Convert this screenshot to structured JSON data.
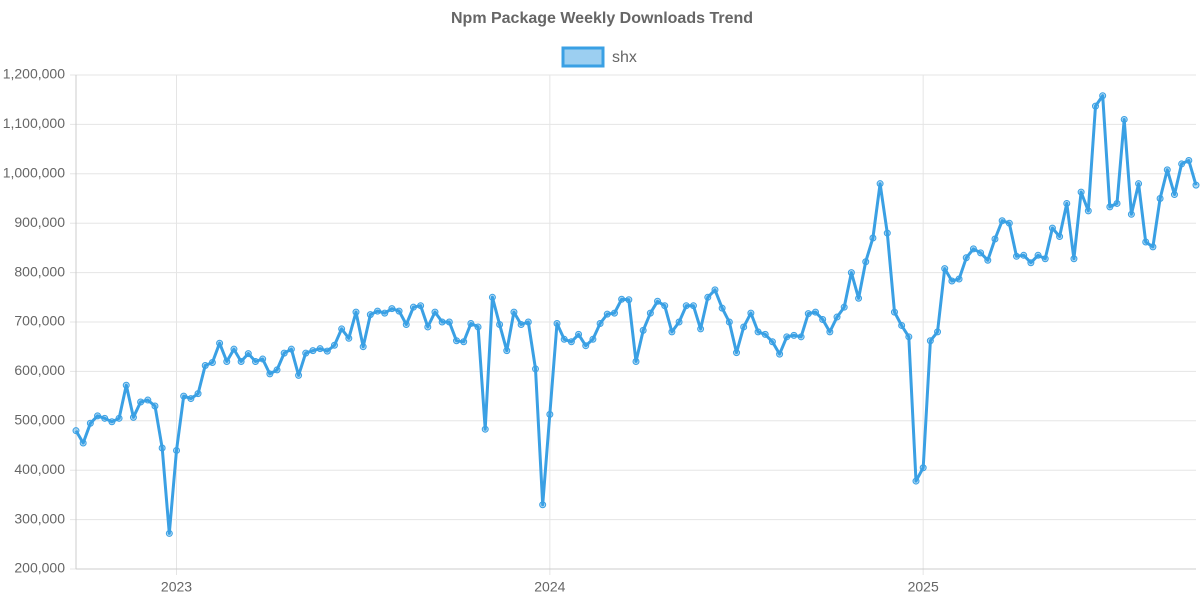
{
  "chart_data": {
    "type": "line",
    "title": "Npm Package Weekly Downloads Trend",
    "categories": [
      null,
      null,
      null,
      null,
      null,
      null,
      null,
      null,
      null,
      null,
      null,
      null,
      null,
      null,
      "2023",
      null,
      null,
      null,
      null,
      null,
      null,
      null,
      null,
      null,
      null,
      null,
      null,
      null,
      null,
      null,
      null,
      null,
      null,
      null,
      null,
      null,
      null,
      null,
      null,
      null,
      null,
      null,
      null,
      null,
      null,
      null,
      null,
      null,
      null,
      null,
      null,
      null,
      null,
      null,
      null,
      null,
      null,
      null,
      null,
      null,
      null,
      null,
      null,
      null,
      null,
      null,
      "2024",
      null,
      null,
      null,
      null,
      null,
      null,
      null,
      null,
      null,
      null,
      null,
      null,
      null,
      null,
      null,
      null,
      null,
      null,
      null,
      null,
      null,
      null,
      null,
      null,
      null,
      null,
      null,
      null,
      null,
      null,
      null,
      null,
      null,
      null,
      null,
      null,
      null,
      null,
      null,
      null,
      null,
      null,
      null,
      null,
      null,
      null,
      null,
      null,
      null,
      null,
      null,
      "2025",
      null,
      null,
      null,
      null,
      null,
      null,
      null,
      null,
      null,
      null,
      null,
      null,
      null,
      null,
      null,
      null,
      null,
      null,
      null,
      null,
      null,
      null,
      null,
      null,
      null,
      null,
      null,
      null,
      null,
      null,
      null,
      null,
      null,
      null,
      null,
      null,
      null,
      null
    ],
    "series": [
      {
        "name": "shx",
        "color": "#3aa0e4",
        "values": [
          480000,
          455000,
          495000,
          510000,
          505000,
          498000,
          505000,
          572000,
          507000,
          538000,
          542000,
          530000,
          445000,
          272000,
          440000,
          550000,
          545000,
          555000,
          612000,
          618000,
          657000,
          620000,
          645000,
          620000,
          636000,
          620000,
          625000,
          595000,
          603000,
          637000,
          645000,
          592000,
          637000,
          642000,
          646000,
          641000,
          653000,
          686000,
          667000,
          720000,
          650000,
          715000,
          722000,
          718000,
          727000,
          722000,
          695000,
          730000,
          733000,
          690000,
          720000,
          700000,
          700000,
          662000,
          660000,
          697000,
          690000,
          483000,
          750000,
          695000,
          642000,
          720000,
          695000,
          700000,
          605000,
          330000,
          513000,
          697000,
          665000,
          660000,
          675000,
          652000,
          665000,
          697000,
          716000,
          718000,
          746000,
          745000,
          620000,
          683000,
          718000,
          742000,
          733000,
          680000,
          700000,
          733000,
          733000,
          686000,
          750000,
          765000,
          728000,
          700000,
          638000,
          690000,
          718000,
          680000,
          675000,
          660000,
          635000,
          670000,
          673000,
          670000,
          717000,
          720000,
          705000,
          680000,
          710000,
          730000,
          800000,
          748000,
          822000,
          870000,
          980000,
          880000,
          720000,
          693000,
          670000,
          378000,
          405000,
          662000,
          680000,
          808000,
          783000,
          787000,
          830000,
          848000,
          840000,
          825000,
          868000,
          905000,
          900000,
          833000,
          835000,
          820000,
          835000,
          828000,
          890000,
          873000,
          940000,
          828000,
          963000,
          925000,
          1137000,
          1158000,
          933000,
          940000,
          1110000,
          918000,
          980000,
          862000,
          852000,
          950000,
          1008000,
          958000,
          1020000,
          1027000,
          977000
        ]
      }
    ],
    "ylim": [
      200000,
      1200000
    ],
    "yticks": [
      {
        "value": 200000,
        "label": "200,000"
      },
      {
        "value": 300000,
        "label": "300,000"
      },
      {
        "value": 400000,
        "label": "400,000"
      },
      {
        "value": 500000,
        "label": "500,000"
      },
      {
        "value": 600000,
        "label": "600,000"
      },
      {
        "value": 700000,
        "label": "700,000"
      },
      {
        "value": 800000,
        "label": "800,000"
      },
      {
        "value": 900000,
        "label": "900,000"
      },
      {
        "value": 1000000,
        "label": "1,000,000"
      },
      {
        "value": 1100000,
        "label": "1,100,000"
      },
      {
        "value": 1200000,
        "label": "1,200,000"
      }
    ],
    "grid": true
  }
}
